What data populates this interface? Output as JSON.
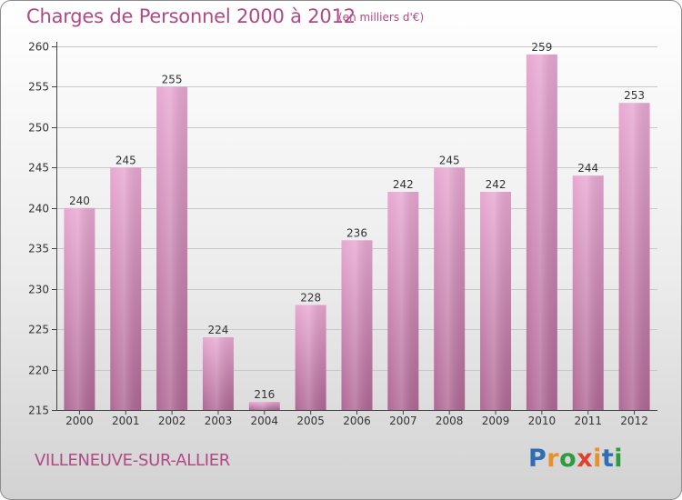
{
  "header": {
    "title": "Charges de Personnel 2000 à 2012",
    "subtitle": "(en milliers d'€)"
  },
  "footer": {
    "city": "VILLENEUVE-SUR-ALLIER",
    "logo_text": "Proxiti",
    "logo_letters": [
      {
        "char": "P",
        "color": "#2f6db5"
      },
      {
        "char": "r",
        "color": "#e8912b"
      },
      {
        "char": "o",
        "color": "#2f9a3e"
      },
      {
        "char": "x",
        "color": "#e2402f"
      },
      {
        "char": "i",
        "color": "#e8912b"
      },
      {
        "char": "t",
        "color": "#2f6db5"
      },
      {
        "char": "i",
        "color": "#2f9a3e"
      }
    ]
  },
  "colors": {
    "accent": "#b04a86",
    "bar_light": "#e8a8d2",
    "bar_dark": "#b06896",
    "axis": "#444444",
    "grid": "#c8c8c8"
  },
  "chart_data": {
    "type": "bar",
    "title": "Charges de Personnel 2000 à 2012",
    "subtitle": "(en milliers d'€)",
    "categories": [
      "2000",
      "2001",
      "2002",
      "2003",
      "2004",
      "2005",
      "2006",
      "2007",
      "2008",
      "2009",
      "2010",
      "2011",
      "2012"
    ],
    "values": [
      240,
      245,
      255,
      224,
      216,
      228,
      236,
      242,
      245,
      242,
      259,
      244,
      253
    ],
    "ylim": [
      215,
      260
    ],
    "yticks": [
      215,
      220,
      225,
      230,
      235,
      240,
      245,
      250,
      255,
      260
    ],
    "grid": true,
    "legend": "none"
  }
}
